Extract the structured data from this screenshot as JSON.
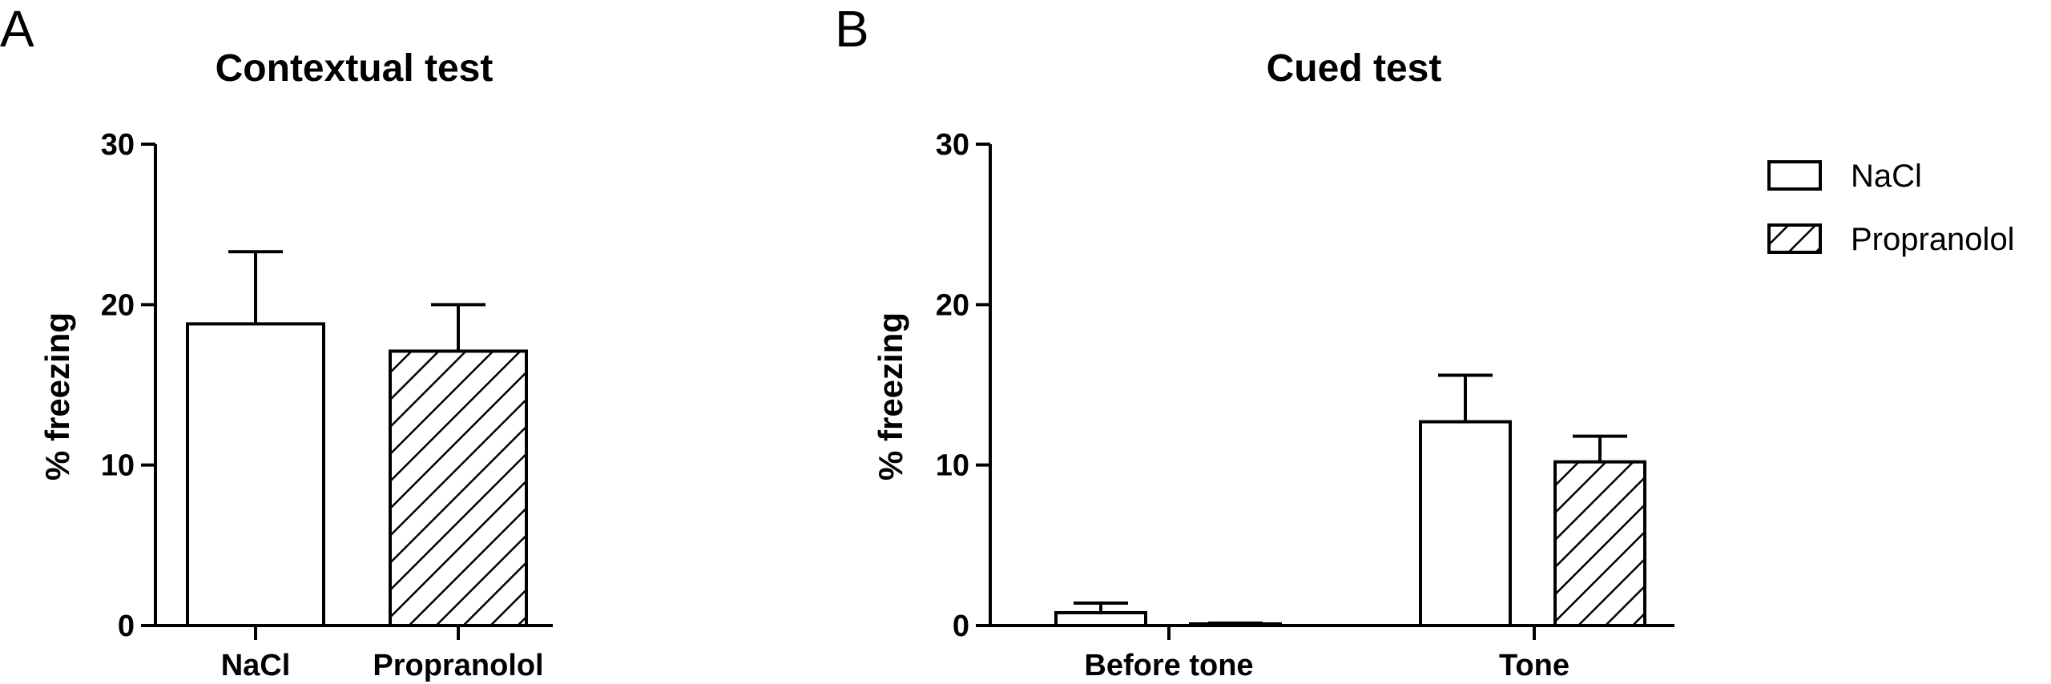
{
  "panels": {
    "a": {
      "label": "A"
    },
    "b": {
      "label": "B"
    }
  },
  "legend": {
    "items": [
      {
        "label": "NaCl",
        "pattern": "open"
      },
      {
        "label": "Propranolol",
        "pattern": "hatched"
      }
    ]
  },
  "chart_data": [
    {
      "type": "bar",
      "title": "Contextual test",
      "xlabel": "",
      "ylabel": "% freezing",
      "ylim": [
        0,
        30
      ],
      "yticks": [
        "0",
        "10",
        "20",
        "30"
      ],
      "categories": [
        "NaCl",
        "Propranolol"
      ],
      "values": [
        18.8,
        17.1
      ],
      "errors": [
        4.5,
        2.9
      ],
      "patterns": [
        "open",
        "hatched"
      ]
    },
    {
      "type": "bar",
      "title": "Cued test",
      "xlabel": "",
      "ylabel": "% freezing",
      "ylim": [
        0,
        30
      ],
      "yticks": [
        "0",
        "10",
        "20",
        "30"
      ],
      "categories": [
        "Before tone",
        "Tone"
      ],
      "series": [
        {
          "name": "NaCl",
          "pattern": "open",
          "values": [
            0.8,
            12.7
          ],
          "errors": [
            0.6,
            2.9
          ]
        },
        {
          "name": "Propranolol",
          "pattern": "hatched",
          "values": [
            0.1,
            10.2
          ],
          "errors": [
            0.05,
            1.6
          ]
        }
      ],
      "legend_position": "top-right"
    }
  ]
}
